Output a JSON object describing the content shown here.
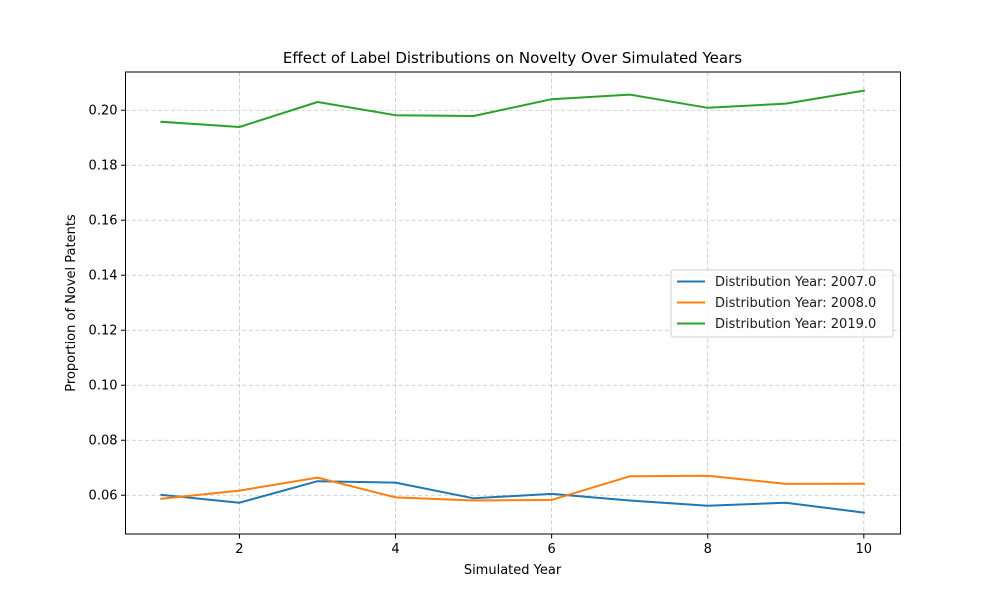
{
  "chart_data": {
    "type": "line",
    "title": "Effect of Label Distributions on Novelty Over Simulated Years",
    "xlabel": "Simulated Year",
    "ylabel": "Proportion of Novel Patents",
    "x": [
      1,
      2,
      3,
      4,
      5,
      6,
      7,
      8,
      9,
      10
    ],
    "xlim": [
      0.54,
      10.47
    ],
    "ylim": [
      0.0459,
      0.2139
    ],
    "xticks": [
      2,
      4,
      6,
      8,
      10
    ],
    "xtick_labels": [
      "2",
      "4",
      "6",
      "8",
      "10"
    ],
    "yticks": [
      0.06,
      0.08,
      0.1,
      0.12,
      0.14,
      0.16,
      0.18,
      0.2
    ],
    "ytick_labels": [
      "0.06",
      "0.08",
      "0.10",
      "0.12",
      "0.14",
      "0.16",
      "0.18",
      "0.20"
    ],
    "grid": true,
    "legend_position": "center-right",
    "series": [
      {
        "name": "Distribution Year: 2007.0",
        "color": "#1f77b4",
        "values": [
          0.0601,
          0.0573,
          0.0651,
          0.0646,
          0.0589,
          0.0605,
          0.0581,
          0.0562,
          0.0573,
          0.0537
        ]
      },
      {
        "name": "Distribution Year: 2008.0",
        "color": "#ff7f0e",
        "values": [
          0.0587,
          0.0617,
          0.0664,
          0.0592,
          0.0581,
          0.0583,
          0.0669,
          0.0671,
          0.0641,
          0.0642
        ]
      },
      {
        "name": "Distribution Year: 2019.0",
        "color": "#2ca02c",
        "values": [
          0.1958,
          0.1939,
          0.203,
          0.1982,
          0.1979,
          0.204,
          0.2057,
          0.2009,
          0.2024,
          0.2071
        ]
      }
    ]
  }
}
